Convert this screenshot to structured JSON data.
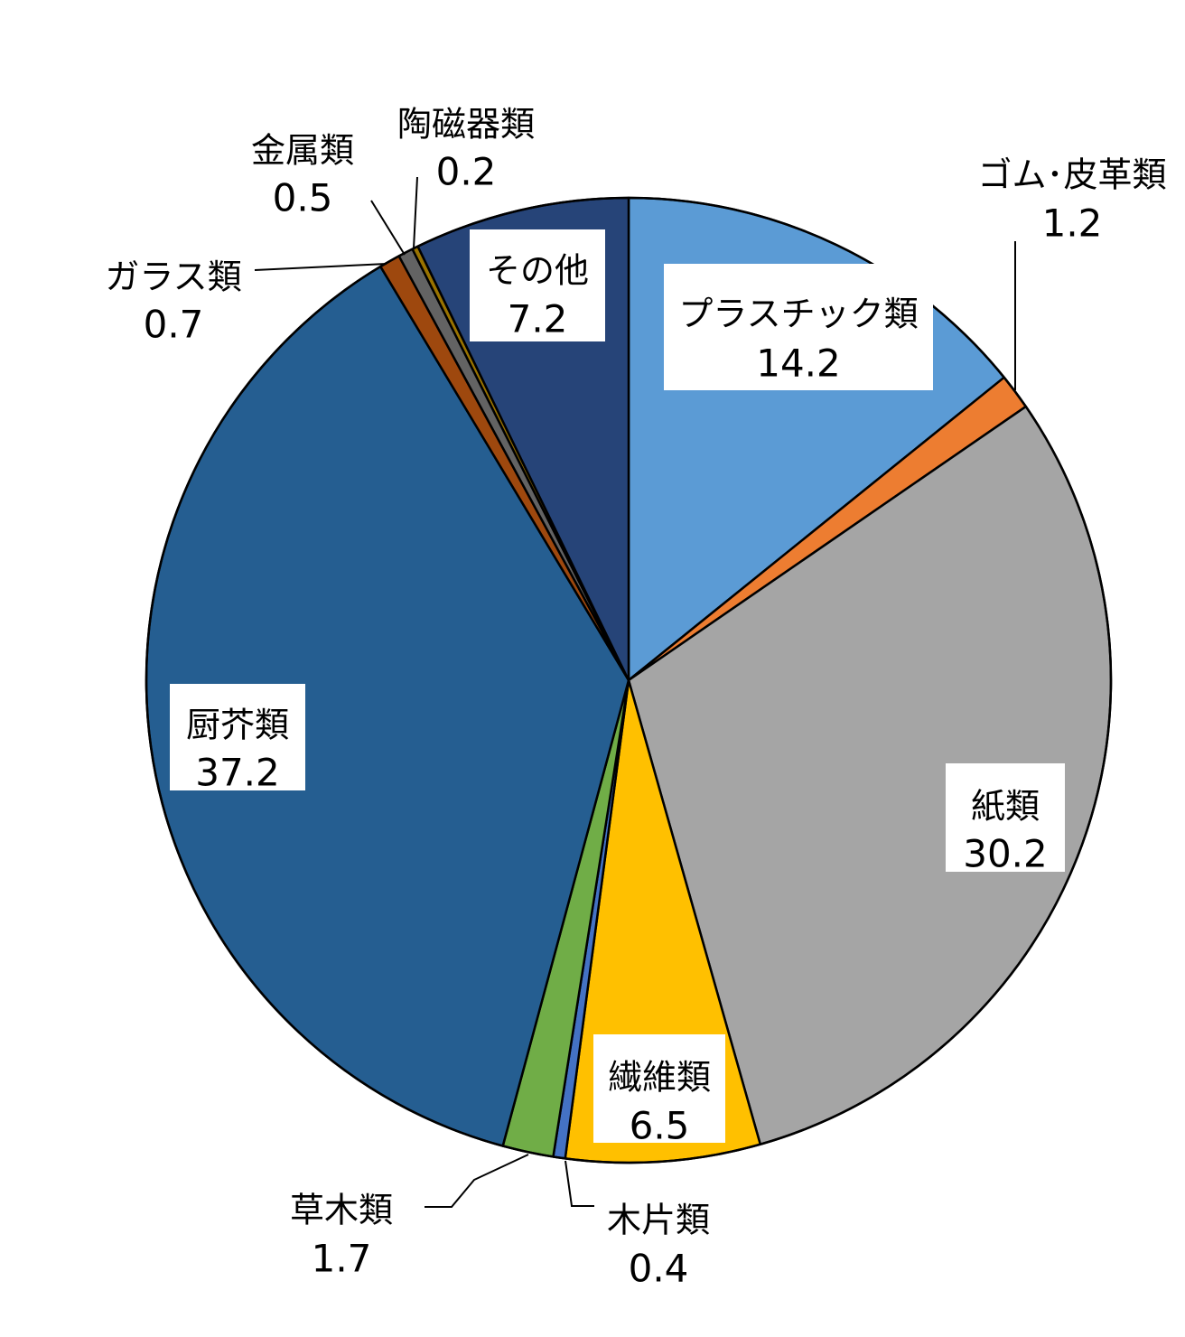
{
  "chart_data": {
    "type": "pie",
    "title": "",
    "slices": [
      {
        "name": "プラスチック類",
        "value": 14.2,
        "label": "14.2",
        "color": "#5B9BD5"
      },
      {
        "name": "ゴム･皮革類",
        "value": 1.2,
        "label": "1.2",
        "color": "#ED7D31"
      },
      {
        "name": "紙類",
        "value": 30.2,
        "label": "30.2",
        "color": "#A5A5A5"
      },
      {
        "name": "繊維類",
        "value": 6.5,
        "label": "6.5",
        "color": "#FFC000"
      },
      {
        "name": "木片類",
        "value": 0.4,
        "label": "0.4",
        "color": "#4472C4"
      },
      {
        "name": "草木類",
        "value": 1.7,
        "label": "1.7",
        "color": "#70AD47"
      },
      {
        "name": "厨芥類",
        "value": 37.2,
        "label": "37.2",
        "color": "#255E91"
      },
      {
        "name": "ガラス類",
        "value": 0.7,
        "label": "0.7",
        "color": "#9E480E"
      },
      {
        "name": "金属類",
        "value": 0.5,
        "label": "0.5",
        "color": "#636363"
      },
      {
        "name": "陶磁器類",
        "value": 0.2,
        "label": "0.2",
        "color": "#997300"
      },
      {
        "name": "その他",
        "value": 7.2,
        "label": "7.2",
        "color": "#264478"
      }
    ]
  }
}
